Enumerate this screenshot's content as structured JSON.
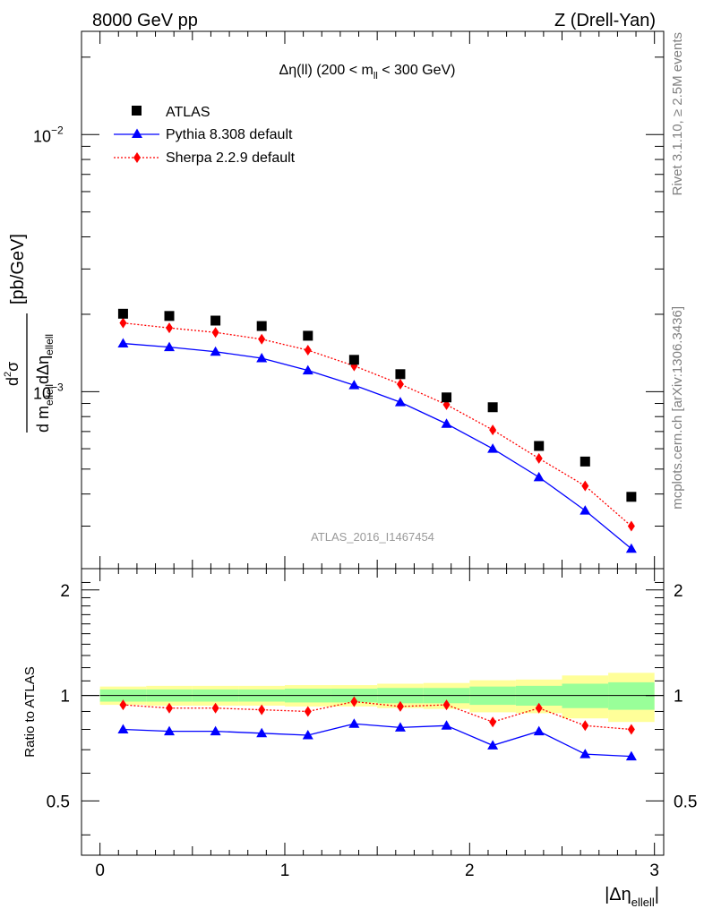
{
  "header": {
    "energy": "8000 GeV pp",
    "process": "Z (Drell-Yan)",
    "rivet": "Rivet 3.1.10, ≥ 2.5M events",
    "mcplots": "mcplots.cern.ch [arXiv:1306.3436]",
    "analysis_id": "ATLAS_2016_I1467454"
  },
  "colors": {
    "atlas": "#000000",
    "pythia": "#0000ff",
    "sherpa": "#ff0000",
    "band_inner": "#99ff99",
    "band_outer": "#ffff99",
    "id_text": "#999999"
  },
  "chart_data": [
    {
      "type": "scatter",
      "panel": "main",
      "title": "Δη(ll) (200 < m_ll < 300 GeV)",
      "xlabel": "|Δη_ellell|",
      "ylabel": "d²σ / d m_ellell dΔη_ellell [pb/GeV]",
      "xlim": [
        -0.1,
        3.05
      ],
      "ylim": [
        0.000205,
        0.0252
      ],
      "yscale": "log",
      "ytick_labels": [
        "10^-3",
        "10^-2"
      ],
      "legend_position": "top-left",
      "x": [
        0.125,
        0.375,
        0.625,
        0.875,
        1.125,
        1.375,
        1.625,
        1.875,
        2.125,
        2.375,
        2.625,
        2.875
      ],
      "series": [
        {
          "name": "ATLAS",
          "marker": "square",
          "values": [
            0.00201,
            0.00197,
            0.00189,
            0.0018,
            0.00165,
            0.00133,
            0.00117,
            0.00095,
            0.00087,
            0.000615,
            0.000535,
            0.00039
          ]
        },
        {
          "name": "Pythia 8.308 default",
          "marker": "triangle",
          "line": "solid",
          "values": [
            0.00154,
            0.00149,
            0.00143,
            0.00135,
            0.00121,
            0.00106,
            0.00091,
            0.00075,
            0.0006,
            0.000465,
            0.000345,
            0.000245
          ]
        },
        {
          "name": "Sherpa 2.2.9 default",
          "marker": "diamond",
          "line": "dotted",
          "values": [
            0.00185,
            0.00177,
            0.0017,
            0.0016,
            0.00145,
            0.00126,
            0.00107,
            0.00089,
            0.00071,
            0.00055,
            0.00043,
            0.0003
          ]
        }
      ]
    },
    {
      "type": "line",
      "panel": "ratio",
      "ylabel": "Ratio to ATLAS",
      "xlabel": "|Δη_ellell|",
      "xlim": [
        -0.1,
        3.05
      ],
      "ylim": [
        0.35,
        2.3
      ],
      "yscale": "log",
      "ytick_labels": [
        "0.5",
        "1",
        "2"
      ],
      "xtick_labels": [
        "0",
        "1",
        "2",
        "3"
      ],
      "x": [
        0.125,
        0.375,
        0.625,
        0.875,
        1.125,
        1.375,
        1.625,
        1.875,
        2.125,
        2.375,
        2.625,
        2.875
      ],
      "bin_edges": [
        0,
        0.25,
        0.5,
        0.75,
        1.0,
        1.25,
        1.5,
        1.75,
        2.0,
        2.25,
        2.5,
        2.75,
        3.0
      ],
      "series": [
        {
          "name": "Pythia 8.308 default",
          "values": [
            0.8,
            0.79,
            0.79,
            0.78,
            0.77,
            0.83,
            0.81,
            0.82,
            0.72,
            0.79,
            0.68,
            0.67
          ]
        },
        {
          "name": "Sherpa 2.2.9 default",
          "values": [
            0.94,
            0.92,
            0.92,
            0.91,
            0.9,
            0.96,
            0.93,
            0.94,
            0.84,
            0.92,
            0.82,
            0.8
          ]
        }
      ],
      "band_inner": {
        "low": [
          0.96,
          0.96,
          0.96,
          0.96,
          0.955,
          0.955,
          0.95,
          0.95,
          0.94,
          0.935,
          0.92,
          0.91
        ],
        "high": [
          1.04,
          1.04,
          1.04,
          1.04,
          1.045,
          1.045,
          1.05,
          1.05,
          1.06,
          1.065,
          1.08,
          1.09
        ]
      },
      "band_outer": {
        "low": [
          0.94,
          0.935,
          0.935,
          0.935,
          0.93,
          0.93,
          0.92,
          0.915,
          0.895,
          0.89,
          0.86,
          0.84
        ],
        "high": [
          1.06,
          1.065,
          1.065,
          1.065,
          1.07,
          1.07,
          1.08,
          1.085,
          1.105,
          1.11,
          1.14,
          1.16
        ]
      }
    }
  ]
}
